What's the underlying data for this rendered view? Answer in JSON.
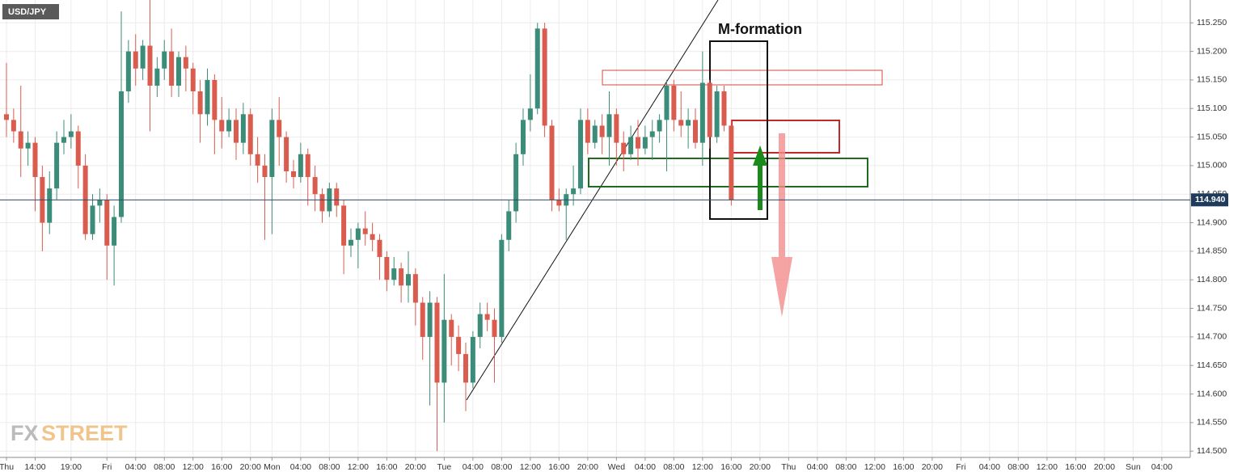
{
  "chart_data": {
    "type": "candlestick",
    "title": "USD/JPY",
    "annotation": "M-formation",
    "watermark": [
      "FX",
      "STREET"
    ],
    "last_price": {
      "value": 114.94,
      "label": "114.940"
    },
    "up_color": "#3b8c78",
    "down_color": "#d95c4f",
    "open": [
      115.09,
      115.08,
      115.06,
      115.03,
      115.04,
      114.98,
      114.9,
      114.96,
      115.04,
      115.05,
      115.06,
      115.0,
      114.88,
      114.93,
      114.94,
      114.86,
      114.91,
      115.13,
      115.2,
      115.17,
      115.21,
      115.14,
      115.17,
      115.2,
      115.14,
      115.19,
      115.17,
      115.13,
      115.09,
      115.15,
      115.08,
      115.06,
      115.08,
      115.04,
      115.09,
      115.02,
      115.0,
      114.98,
      115.08,
      115.05,
      114.99,
      114.98,
      115.02,
      114.98,
      114.95,
      114.92,
      114.96,
      114.93,
      114.86,
      114.87,
      114.89,
      114.88,
      114.87,
      114.84,
      114.8,
      114.82,
      114.79,
      114.81,
      114.76,
      114.7,
      114.76,
      114.62,
      114.73,
      114.7,
      114.67,
      114.62,
      114.7,
      114.74,
      114.73,
      114.7,
      114.87,
      114.92,
      115.02,
      115.08,
      115.1,
      115.24,
      115.07,
      114.94,
      114.93,
      114.95,
      114.96,
      115.08,
      115.04,
      115.07,
      115.05,
      115.09,
      115.04,
      115.02,
      115.05,
      115.03,
      115.05,
      115.06,
      115.08,
      115.14,
      115.08,
      115.07,
      115.08,
      115.04,
      115.145,
      115.05,
      115.13,
      115.07
    ],
    "high": [
      115.18,
      115.1,
      115.14,
      115.06,
      115.05,
      115.0,
      114.99,
      115.06,
      115.08,
      115.09,
      115.07,
      115.02,
      114.95,
      114.96,
      114.95,
      114.93,
      115.27,
      115.22,
      115.23,
      115.22,
      115.29,
      115.19,
      115.22,
      115.24,
      115.2,
      115.21,
      115.18,
      115.15,
      115.17,
      115.16,
      115.12,
      115.1,
      115.1,
      115.11,
      115.1,
      115.05,
      115.02,
      115.1,
      115.12,
      115.06,
      115.01,
      115.04,
      115.03,
      115.0,
      114.96,
      114.97,
      114.97,
      114.94,
      114.89,
      114.9,
      114.92,
      114.9,
      114.88,
      114.85,
      114.84,
      114.83,
      114.85,
      114.82,
      114.77,
      114.78,
      114.77,
      114.81,
      114.74,
      114.72,
      114.69,
      114.71,
      114.76,
      114.76,
      114.75,
      114.88,
      114.94,
      115.04,
      115.1,
      115.16,
      115.25,
      115.25,
      115.08,
      114.96,
      114.96,
      115.0,
      115.1,
      115.1,
      115.08,
      115.09,
      115.13,
      115.1,
      115.06,
      115.07,
      115.08,
      115.07,
      115.08,
      115.09,
      115.15,
      115.15,
      115.13,
      115.1,
      115.1,
      115.2,
      115.15,
      115.14,
      115.14,
      115.08
    ],
    "low": [
      115.05,
      115.04,
      114.98,
      115.0,
      114.92,
      114.85,
      114.88,
      114.94,
      115.02,
      115.03,
      114.96,
      114.87,
      114.87,
      114.9,
      114.8,
      114.79,
      114.9,
      115.11,
      115.14,
      115.15,
      115.06,
      115.12,
      115.15,
      115.12,
      115.12,
      115.13,
      115.09,
      115.04,
      115.07,
      115.02,
      115.03,
      115.05,
      115.01,
      115.02,
      115.0,
      114.97,
      114.87,
      114.88,
      115.0,
      114.97,
      114.96,
      114.97,
      114.93,
      114.92,
      114.9,
      114.91,
      114.91,
      114.81,
      114.84,
      114.82,
      114.86,
      114.85,
      114.8,
      114.78,
      114.79,
      114.76,
      114.76,
      114.72,
      114.66,
      114.58,
      114.5,
      114.55,
      114.65,
      114.64,
      114.57,
      114.61,
      114.68,
      114.71,
      114.62,
      114.69,
      114.85,
      114.9,
      115.0,
      115.06,
      115.09,
      115.05,
      114.92,
      114.92,
      114.87,
      114.93,
      114.95,
      115.02,
      115.03,
      115.02,
      115.0,
      115.0,
      114.99,
      115.01,
      115.0,
      115.02,
      115.01,
      115.04,
      114.99,
      115.06,
      115.05,
      115.03,
      115.03,
      115.0,
      115.03,
      115.04,
      115.06,
      114.93
    ],
    "close": [
      115.08,
      115.06,
      115.03,
      115.04,
      114.98,
      114.9,
      114.96,
      115.04,
      115.05,
      115.06,
      115.0,
      114.88,
      114.93,
      114.94,
      114.86,
      114.91,
      115.13,
      115.2,
      115.17,
      115.21,
      115.14,
      115.17,
      115.2,
      115.14,
      115.19,
      115.17,
      115.13,
      115.09,
      115.15,
      115.08,
      115.06,
      115.08,
      115.04,
      115.09,
      115.02,
      115.0,
      114.98,
      115.08,
      115.05,
      114.99,
      114.98,
      115.02,
      114.98,
      114.95,
      114.92,
      114.96,
      114.93,
      114.86,
      114.87,
      114.89,
      114.88,
      114.87,
      114.84,
      114.8,
      114.82,
      114.79,
      114.81,
      114.76,
      114.7,
      114.76,
      114.62,
      114.73,
      114.7,
      114.67,
      114.62,
      114.7,
      114.74,
      114.73,
      114.7,
      114.87,
      114.92,
      115.02,
      115.08,
      115.1,
      115.24,
      115.07,
      114.94,
      114.93,
      114.95,
      114.96,
      115.08,
      115.04,
      115.07,
      115.05,
      115.09,
      115.04,
      115.02,
      115.05,
      115.03,
      115.05,
      115.06,
      115.08,
      115.14,
      115.08,
      115.07,
      115.08,
      115.04,
      115.145,
      115.05,
      115.13,
      115.07,
      114.94
    ],
    "xlim": [
      -0.9,
      164.96
    ],
    "xticks": [
      {
        "value": 0,
        "label": "Thu"
      },
      {
        "value": 4,
        "label": "14:00"
      },
      {
        "value": 9,
        "label": "19:00"
      },
      {
        "value": 14,
        "label": "Fri"
      },
      {
        "value": 18,
        "label": "04:00"
      },
      {
        "value": 22,
        "label": "08:00"
      },
      {
        "value": 26,
        "label": "12:00"
      },
      {
        "value": 30,
        "label": "16:00"
      },
      {
        "value": 34,
        "label": "20:00"
      },
      {
        "value": 37,
        "label": "Mon"
      },
      {
        "value": 41,
        "label": "04:00"
      },
      {
        "value": 45,
        "label": "08:00"
      },
      {
        "value": 49,
        "label": "12:00"
      },
      {
        "value": 53,
        "label": "16:00"
      },
      {
        "value": 57,
        "label": "20:00"
      },
      {
        "value": 61,
        "label": "Tue"
      },
      {
        "value": 65,
        "label": "04:00"
      },
      {
        "value": 69,
        "label": "08:00"
      },
      {
        "value": 73,
        "label": "12:00"
      },
      {
        "value": 77,
        "label": "16:00"
      },
      {
        "value": 81,
        "label": "20:00"
      },
      {
        "value": 85,
        "label": "Wed"
      },
      {
        "value": 89,
        "label": "04:00"
      },
      {
        "value": 93,
        "label": "08:00"
      },
      {
        "value": 97,
        "label": "12:00"
      },
      {
        "value": 101,
        "label": "16:00"
      },
      {
        "value": 105,
        "label": "20:00"
      },
      {
        "value": 109,
        "label": "Thu"
      },
      {
        "value": 113,
        "label": "04:00"
      },
      {
        "value": 117,
        "label": "08:00"
      },
      {
        "value": 121,
        "label": "12:00"
      },
      {
        "value": 125,
        "label": "16:00"
      },
      {
        "value": 129,
        "label": "20:00"
      },
      {
        "value": 133,
        "label": "Fri"
      },
      {
        "value": 137,
        "label": "04:00"
      },
      {
        "value": 141,
        "label": "08:00"
      },
      {
        "value": 145,
        "label": "12:00"
      },
      {
        "value": 149,
        "label": "16:00"
      },
      {
        "value": 153,
        "label": "20:00"
      },
      {
        "value": 157,
        "label": "Sun"
      },
      {
        "value": 161,
        "label": "04:00"
      }
    ],
    "ylim": [
      114.489,
      115.29
    ],
    "yticks": [
      {
        "value": 114.5,
        "label": "114.500"
      },
      {
        "value": 114.55,
        "label": "114.550"
      },
      {
        "value": 114.6,
        "label": "114.600"
      },
      {
        "value": 114.65,
        "label": "114.650"
      },
      {
        "value": 114.7,
        "label": "114.700"
      },
      {
        "value": 114.75,
        "label": "114.750"
      },
      {
        "value": 114.8,
        "label": "114.800"
      },
      {
        "value": 114.85,
        "label": "114.850"
      },
      {
        "value": 114.9,
        "label": "114.900"
      },
      {
        "value": 114.95,
        "label": "114.950"
      },
      {
        "value": 115.0,
        "label": "115.000"
      },
      {
        "value": 115.05,
        "label": "115.050"
      },
      {
        "value": 115.1,
        "label": "115.100"
      },
      {
        "value": 115.15,
        "label": "115.150"
      },
      {
        "value": 115.2,
        "label": "115.200"
      },
      {
        "value": 115.25,
        "label": "115.250"
      }
    ],
    "grid": true
  }
}
